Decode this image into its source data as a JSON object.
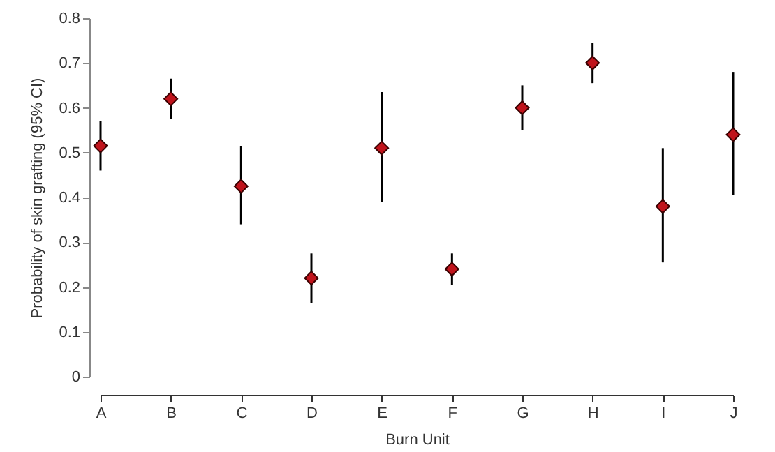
{
  "chart_data": {
    "type": "scatter",
    "xlabel": "Burn Unit",
    "ylabel": "Probability of skin grafting (95% CI)",
    "categories": [
      "A",
      "B",
      "C",
      "D",
      "E",
      "F",
      "G",
      "H",
      "I",
      "J"
    ],
    "series": [
      {
        "color": "#c0141c",
        "values": [
          0.515,
          0.62,
          0.425,
          0.22,
          0.51,
          0.24,
          0.6,
          0.7,
          0.38,
          0.54
        ],
        "errors": [
          [
            0.46,
            0.57
          ],
          [
            0.575,
            0.665
          ],
          [
            0.34,
            0.515
          ],
          [
            0.165,
            0.275
          ],
          [
            0.39,
            0.635
          ],
          [
            0.205,
            0.275
          ],
          [
            0.55,
            0.65
          ],
          [
            0.655,
            0.745
          ],
          [
            0.255,
            0.51
          ],
          [
            0.405,
            0.68
          ]
        ]
      }
    ],
    "ylim": [
      0,
      0.8
    ],
    "yticks": [
      0,
      0.1,
      0.2,
      0.3,
      0.4,
      0.5,
      0.6,
      0.7,
      0.8
    ],
    "marker": "diamond",
    "grid": false
  }
}
